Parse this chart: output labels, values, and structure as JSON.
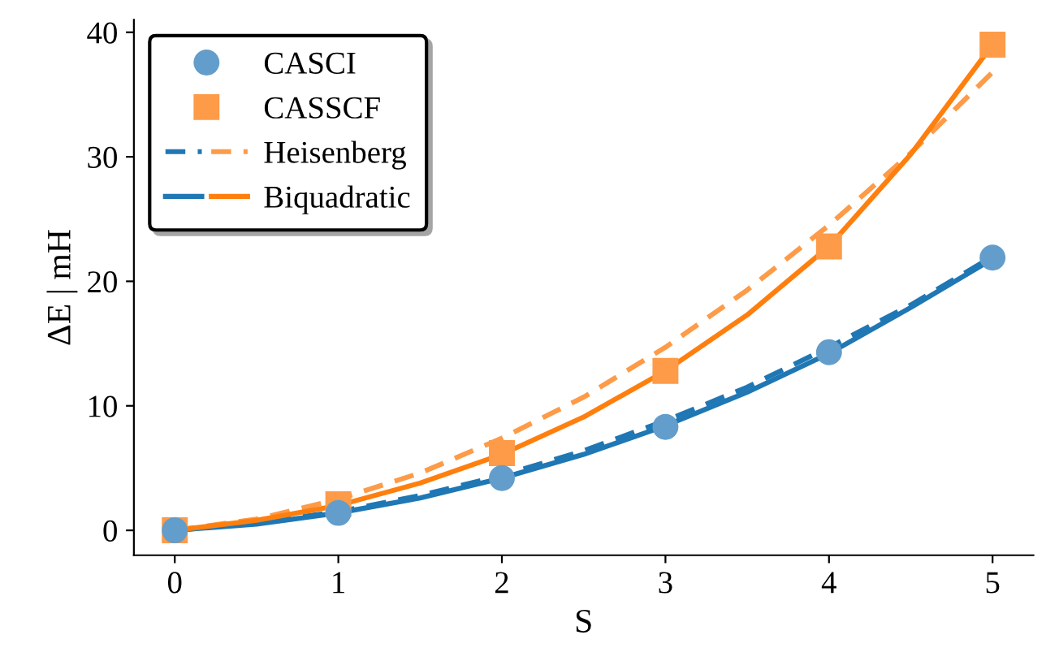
{
  "chart_data": {
    "type": "scatter",
    "xlabel": "S",
    "ylabel": "ΔE | mH",
    "xlim": [
      -0.25,
      5.25
    ],
    "ylim": [
      -2,
      41
    ],
    "xticks": [
      0,
      1,
      2,
      3,
      4,
      5
    ],
    "yticks": [
      0,
      10,
      20,
      30,
      40
    ],
    "grid": false,
    "legend": "top left",
    "series": [
      {
        "name": "CASCI",
        "type": "scatter",
        "marker": "circle",
        "color": "#629dcb",
        "x": [
          0,
          1,
          2,
          3,
          4,
          5
        ],
        "values": [
          0,
          1.4,
          4.2,
          8.3,
          14.3,
          21.9
        ]
      },
      {
        "name": "CASSCF",
        "type": "scatter",
        "marker": "square",
        "color": "#fd9b48",
        "x": [
          0,
          1,
          2,
          3,
          4,
          5
        ],
        "values": [
          0,
          2.1,
          6.2,
          12.8,
          22.8,
          39.0
        ]
      },
      {
        "type": "line",
        "line_style": "dashed",
        "color": "#1f77b4",
        "x": [
          0,
          0.5,
          1,
          1.5,
          2,
          2.5,
          3,
          3.5,
          4,
          4.5,
          5
        ],
        "values": [
          0,
          0.6,
          1.5,
          2.8,
          4.4,
          6.4,
          8.8,
          11.5,
          14.7,
          18.1,
          22.0
        ]
      },
      {
        "name": "Heisenberg",
        "type": "line",
        "line_style": "dashed",
        "color": "#fd9b48",
        "x": [
          0,
          0.5,
          1,
          1.5,
          2,
          2.5,
          3,
          3.5,
          4,
          4.5,
          5
        ],
        "values": [
          0,
          0.9,
          2.5,
          4.6,
          7.4,
          10.7,
          14.7,
          19.3,
          24.5,
          30.3,
          36.8
        ]
      },
      {
        "type": "line",
        "line_style": "solid",
        "color": "#1f77b4",
        "x": [
          0,
          0.5,
          1,
          1.5,
          2,
          2.5,
          3,
          3.5,
          4,
          4.5,
          5
        ],
        "values": [
          0,
          0.5,
          1.4,
          2.6,
          4.2,
          6.1,
          8.4,
          11.1,
          14.2,
          17.9,
          21.8
        ]
      },
      {
        "name": "Biquadratic",
        "type": "line",
        "line_style": "solid",
        "color": "#ff7f0e",
        "x": [
          0,
          0.5,
          1,
          1.5,
          2,
          2.5,
          3,
          3.5,
          4,
          4.5,
          5
        ],
        "values": [
          0,
          0.8,
          2.0,
          3.8,
          6.1,
          9.1,
          12.8,
          17.3,
          22.8,
          30.2,
          39.0
        ]
      }
    ]
  }
}
